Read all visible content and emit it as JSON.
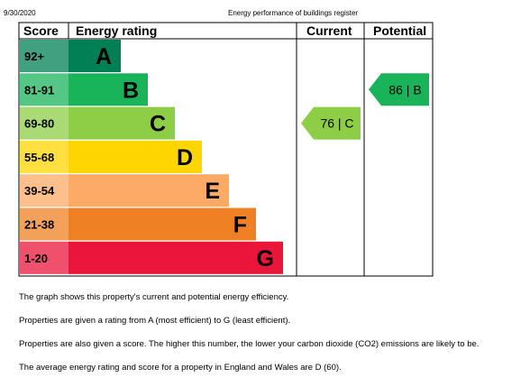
{
  "header": {
    "date": "9/30/2020",
    "title": "Energy performance of buildings register"
  },
  "chart_data": {
    "type": "bar",
    "title": "",
    "columns": {
      "score": "Score",
      "rating": "Energy rating",
      "current": "Current",
      "potential": "Potential"
    },
    "bands": [
      {
        "range": "92+",
        "letter": "A",
        "color": "#008054",
        "text_color": "#000000"
      },
      {
        "range": "81-91",
        "letter": "B",
        "color": "#19b459",
        "text_color": "#000000"
      },
      {
        "range": "69-80",
        "letter": "C",
        "color": "#8dce46",
        "text_color": "#000000"
      },
      {
        "range": "55-68",
        "letter": "D",
        "color": "#ffd500",
        "text_color": "#000000"
      },
      {
        "range": "39-54",
        "letter": "E",
        "color": "#fcaa65",
        "text_color": "#000000"
      },
      {
        "range": "21-38",
        "letter": "F",
        "color": "#ef8023",
        "text_color": "#000000"
      },
      {
        "range": "1-20",
        "letter": "G",
        "color": "#e9153b",
        "text_color": "#000000"
      }
    ],
    "current": {
      "score": 76,
      "band": "C",
      "label": "76 | C",
      "color": "#8dce46"
    },
    "potential": {
      "score": 86,
      "band": "B",
      "label": "86 | B",
      "color": "#19b459"
    }
  },
  "notes": [
    "The graph shows this property's current and potential energy efficiency.",
    "Properties are given a rating from A (most efficient) to G (least efficient).",
    "Properties are also given a score. The higher this number, the lower your carbon dioxide (CO2) emissions are likely to be.",
    "The average energy rating and score for a property in England and Wales are D (60)."
  ]
}
